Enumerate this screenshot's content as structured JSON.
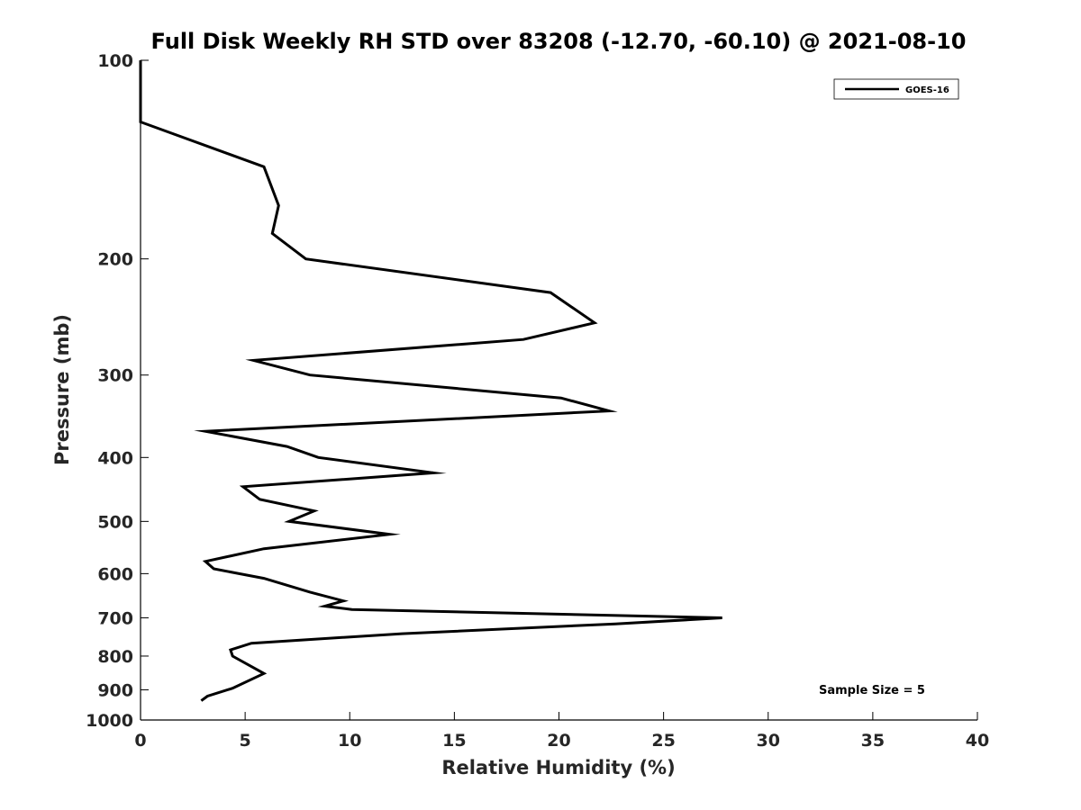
{
  "chart_data": {
    "type": "line",
    "title": "Full Disk Weekly RH STD over 83208 (-12.70, -60.10) @ 2021-08-10",
    "xlabel": "Relative Humidity (%)",
    "ylabel": "Pressure (mb)",
    "xlim": [
      0,
      40
    ],
    "ylim": [
      100,
      1000
    ],
    "y_scale": "log",
    "y_reversed": true,
    "grid": false,
    "x_ticks": [
      0,
      5,
      10,
      15,
      20,
      25,
      30,
      35,
      40
    ],
    "y_ticks": [
      100,
      200,
      300,
      400,
      500,
      600,
      700,
      800,
      900,
      1000
    ],
    "legend_position": "top-right",
    "annotation": "Sample Size = 5",
    "series": [
      {
        "name": "GOES-16",
        "color": "#000000",
        "points": [
          {
            "x": 0.0,
            "p": 100
          },
          {
            "x": 0.0,
            "p": 124
          },
          {
            "x": 5.9,
            "p": 145
          },
          {
            "x": 6.6,
            "p": 166
          },
          {
            "x": 6.3,
            "p": 183
          },
          {
            "x": 7.9,
            "p": 200
          },
          {
            "x": 19.6,
            "p": 225
          },
          {
            "x": 21.7,
            "p": 250
          },
          {
            "x": 18.3,
            "p": 265
          },
          {
            "x": 5.4,
            "p": 285
          },
          {
            "x": 8.1,
            "p": 300
          },
          {
            "x": 20.1,
            "p": 325
          },
          {
            "x": 22.4,
            "p": 340
          },
          {
            "x": 3.1,
            "p": 365
          },
          {
            "x": 7.0,
            "p": 385
          },
          {
            "x": 8.5,
            "p": 400
          },
          {
            "x": 14.0,
            "p": 422
          },
          {
            "x": 4.9,
            "p": 443
          },
          {
            "x": 5.7,
            "p": 463
          },
          {
            "x": 8.3,
            "p": 482
          },
          {
            "x": 7.1,
            "p": 500
          },
          {
            "x": 11.9,
            "p": 523
          },
          {
            "x": 5.9,
            "p": 550
          },
          {
            "x": 3.1,
            "p": 575
          },
          {
            "x": 3.5,
            "p": 590
          },
          {
            "x": 5.9,
            "p": 610
          },
          {
            "x": 8.1,
            "p": 640
          },
          {
            "x": 9.7,
            "p": 660
          },
          {
            "x": 8.8,
            "p": 672
          },
          {
            "x": 10.1,
            "p": 680
          },
          {
            "x": 27.8,
            "p": 700
          },
          {
            "x": 22.7,
            "p": 715
          },
          {
            "x": 12.5,
            "p": 740
          },
          {
            "x": 5.3,
            "p": 765
          },
          {
            "x": 4.3,
            "p": 783
          },
          {
            "x": 4.4,
            "p": 800
          },
          {
            "x": 5.9,
            "p": 850
          },
          {
            "x": 4.4,
            "p": 895
          },
          {
            "x": 3.2,
            "p": 920
          },
          {
            "x": 2.9,
            "p": 935
          }
        ]
      }
    ]
  }
}
